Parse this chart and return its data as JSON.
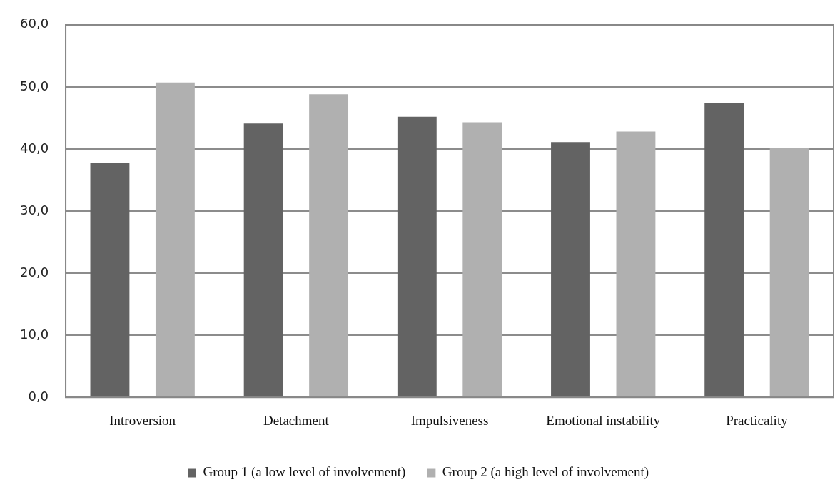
{
  "chart_data": {
    "type": "bar",
    "categories": [
      "Introversion",
      "Detachment",
      "Impulsiveness",
      "Emotional instability",
      "Practicality"
    ],
    "series": [
      {
        "name": "Group 1 (a low level of involvement)",
        "color": "#636363",
        "values": [
          37.8,
          44.1,
          45.2,
          41.1,
          47.4
        ]
      },
      {
        "name": "Group 2 (a high level of involvement)",
        "color": "#b0b0b0",
        "values": [
          50.7,
          48.8,
          44.3,
          42.8,
          40.2
        ]
      }
    ],
    "ylim": [
      0,
      60
    ],
    "yticks": [
      {
        "value": 0,
        "label": "0,0"
      },
      {
        "value": 10,
        "label": "10,0"
      },
      {
        "value": 20,
        "label": "20,0"
      },
      {
        "value": 30,
        "label": "30,0"
      },
      {
        "value": 40,
        "label": "40,0"
      },
      {
        "value": 50,
        "label": "50,0"
      },
      {
        "value": 60,
        "label": "60,0"
      }
    ],
    "grid": "y",
    "legend": "bottom"
  }
}
